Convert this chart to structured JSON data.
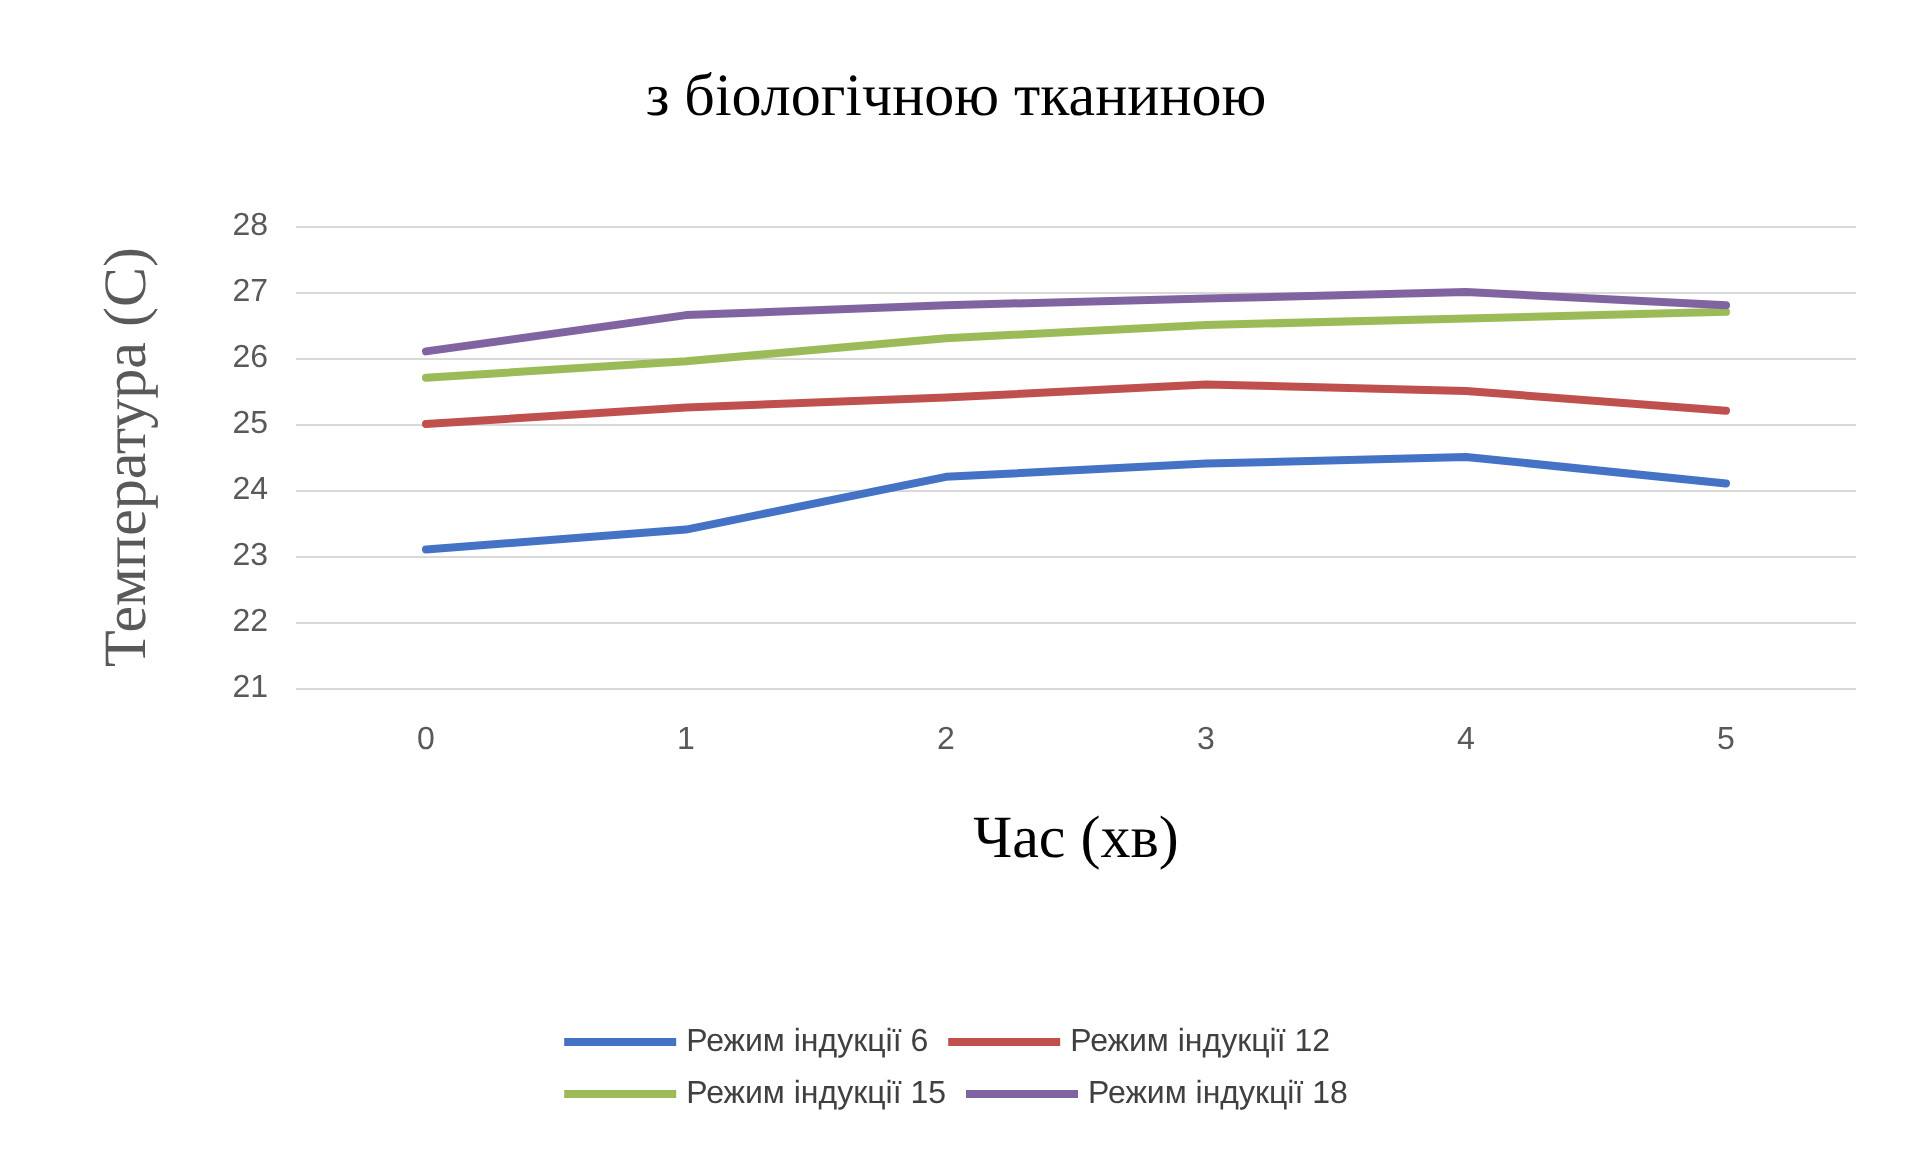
{
  "chart_data": {
    "type": "line",
    "title": "з біологічною тканиною",
    "xlabel": "Час (хв)",
    "ylabel": "Температура (С)",
    "categories": [
      "0",
      "1",
      "2",
      "3",
      "4",
      "5"
    ],
    "series": [
      {
        "name": "Режим індукції 6",
        "color": "#4472c4",
        "values": [
          23.1,
          23.4,
          24.2,
          24.4,
          24.5,
          24.1
        ]
      },
      {
        "name": "Режим індукції 12",
        "color": "#c0504d",
        "values": [
          25.0,
          25.25,
          25.4,
          25.6,
          25.5,
          25.2
        ]
      },
      {
        "name": "Режим індукції 15",
        "color": "#9bbb59",
        "values": [
          25.7,
          25.95,
          26.3,
          26.5,
          26.6,
          26.7
        ]
      },
      {
        "name": "Режим індукції 18",
        "color": "#8064a2",
        "values": [
          26.1,
          26.65,
          26.8,
          26.9,
          27.0,
          26.8
        ]
      }
    ],
    "ylim": [
      21,
      28
    ],
    "yticks": [
      21,
      22,
      23,
      24,
      25,
      26,
      27,
      28
    ],
    "grid": "y",
    "legend": "bottom",
    "marker": "none",
    "line_style": "solid"
  }
}
